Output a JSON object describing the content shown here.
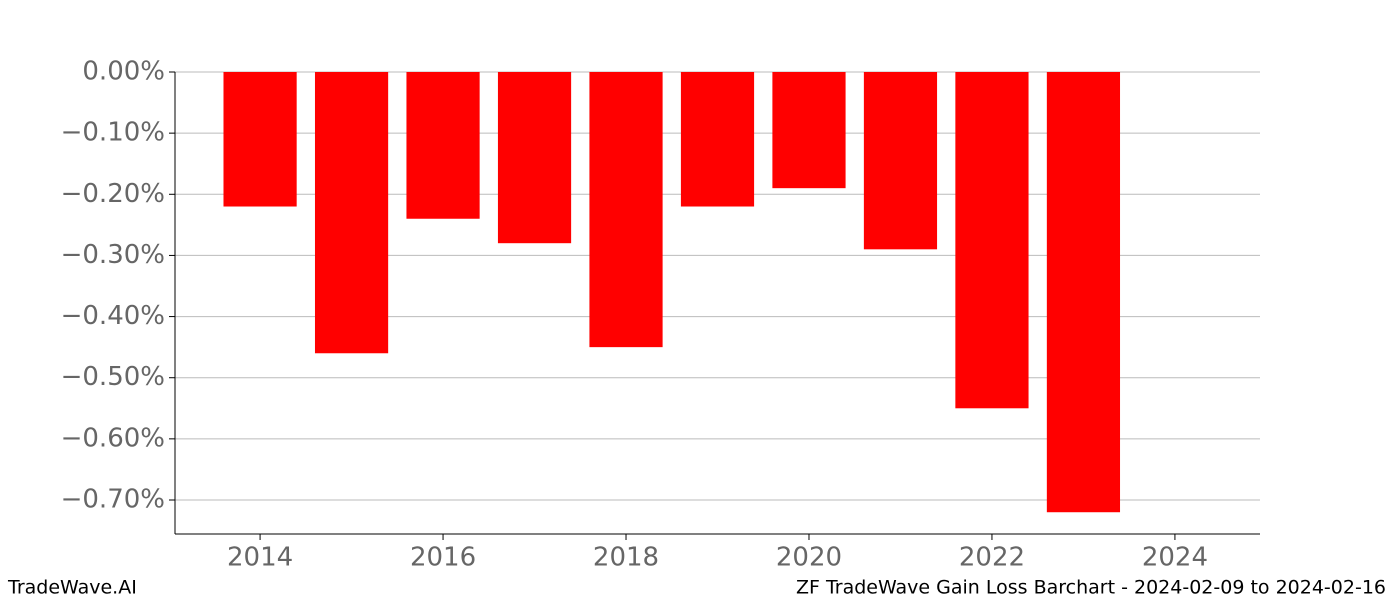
{
  "chart_data": {
    "type": "bar",
    "x": [
      2014,
      2015,
      2016,
      2017,
      2018,
      2019,
      2020,
      2021,
      2022,
      2023
    ],
    "values": [
      -0.22,
      -0.46,
      -0.24,
      -0.28,
      -0.45,
      -0.22,
      -0.19,
      -0.29,
      -0.55,
      -0.72
    ],
    "color": "#ff0000",
    "xlim": [
      2013.07,
      2024.93
    ],
    "xticks": [
      2014,
      2016,
      2018,
      2020,
      2022,
      2024
    ],
    "ylim": [
      -0.7556,
      0
    ],
    "yticks": [
      {
        "value": 0,
        "label": "0.00%"
      },
      {
        "value": -0.1,
        "label": "−0.10%"
      },
      {
        "value": -0.2,
        "label": "−0.20%"
      },
      {
        "value": -0.3,
        "label": "−0.30%"
      },
      {
        "value": -0.4,
        "label": "−0.40%"
      },
      {
        "value": -0.5,
        "label": "−0.50%"
      },
      {
        "value": -0.6,
        "label": "−0.60%"
      },
      {
        "value": -0.7,
        "label": "−0.70%"
      }
    ],
    "grid": true,
    "footer_left": "TradeWave.AI",
    "footer_right": "ZF TradeWave Gain Loss Barchart - 2024-02-09 to 2024-02-16"
  }
}
